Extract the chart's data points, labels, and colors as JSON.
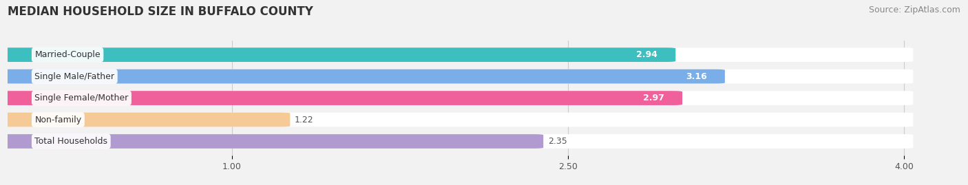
{
  "title": "MEDIAN HOUSEHOLD SIZE IN BUFFALO COUNTY",
  "source": "Source: ZipAtlas.com",
  "categories": [
    "Married-Couple",
    "Single Male/Father",
    "Single Female/Mother",
    "Non-family",
    "Total Households"
  ],
  "values": [
    2.94,
    3.16,
    2.97,
    1.22,
    2.35
  ],
  "bar_colors": [
    "#3ebfbf",
    "#7aaee8",
    "#f0609a",
    "#f5ca96",
    "#b09ad0"
  ],
  "label_colors": [
    "white",
    "white",
    "white",
    "#555555",
    "#555555"
  ],
  "xlim": [
    0,
    4.22
  ],
  "xlim_display": 4.0,
  "xticks": [
    1.0,
    2.5,
    4.0
  ],
  "bar_height": 0.58,
  "background_color": "#f2f2f2",
  "bar_bg_color": "#e2e2e8",
  "title_fontsize": 12,
  "source_fontsize": 9,
  "label_fontsize": 9,
  "value_fontsize": 9
}
